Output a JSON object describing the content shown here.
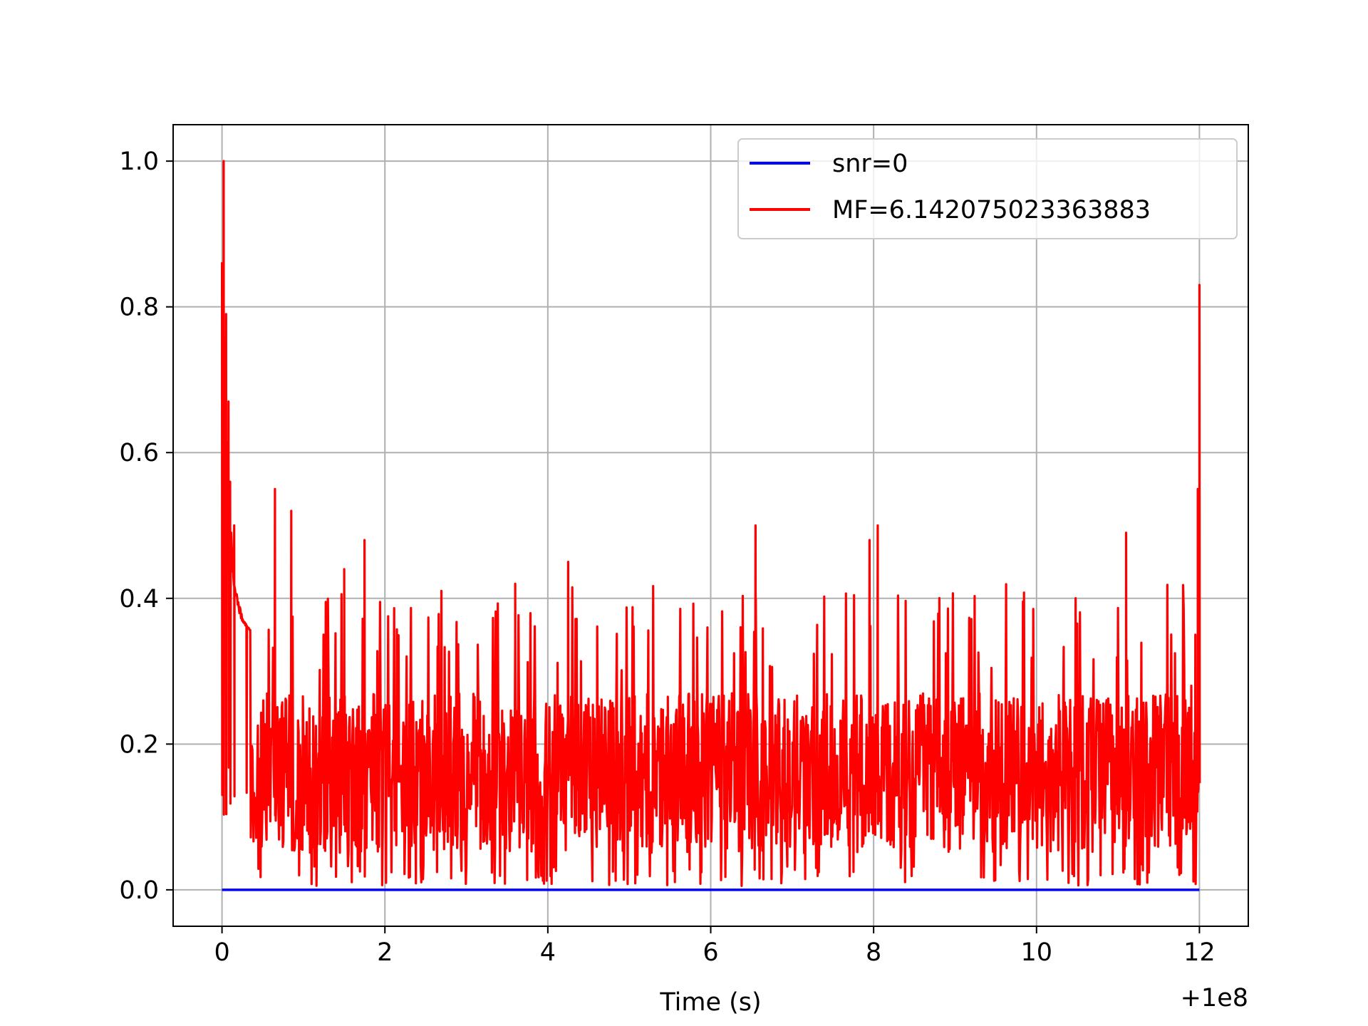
{
  "chart_data": {
    "type": "line",
    "title": "",
    "xlabel": "Time (s)",
    "ylabel": "",
    "x_offset_label": "+1e8",
    "xlim": [
      -0.6,
      12.6
    ],
    "ylim": [
      -0.05,
      1.05
    ],
    "x_ticks": [
      0,
      2,
      4,
      6,
      8,
      10,
      12
    ],
    "y_ticks": [
      0.0,
      0.2,
      0.4,
      0.6,
      0.8,
      1.0
    ],
    "x_tick_labels": [
      "0",
      "2",
      "4",
      "6",
      "8",
      "10",
      "12"
    ],
    "y_tick_labels": [
      "0.0",
      "0.2",
      "0.4",
      "0.6",
      "0.8",
      "1.0"
    ],
    "grid": true,
    "legend_position": "top-right",
    "series": [
      {
        "name": "snr=0",
        "color": "#0000ff",
        "x": [
          0,
          12
        ],
        "y": [
          0.0,
          0.0
        ]
      },
      {
        "name": "MF=6.142075023363883",
        "color": "#ff0000",
        "noise_band": [
          0.0,
          0.45
        ],
        "x": [
          0,
          0.02,
          0.05,
          0.08,
          0.1,
          0.15,
          0.3,
          0.65,
          0.85,
          1.5,
          1.75,
          3.6,
          4.25,
          6.55,
          7.95,
          8.05,
          11.1,
          11.9,
          11.95,
          11.98,
          12.0
        ],
        "y": [
          0.86,
          1.0,
          0.79,
          0.67,
          0.56,
          0.5,
          0.34,
          0.55,
          0.52,
          0.44,
          0.48,
          0.42,
          0.45,
          0.5,
          0.48,
          0.5,
          0.49,
          0.28,
          0.35,
          0.55,
          0.83
        ]
      }
    ]
  }
}
